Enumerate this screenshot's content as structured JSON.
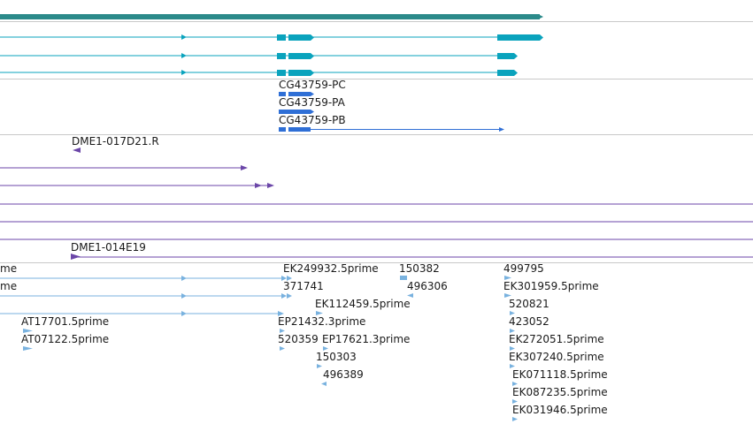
{
  "colors": {
    "gene": "#2b8a8a",
    "transcript": "#0aa3bd",
    "cds": "#2f6fd6",
    "bac": "#6b46a8",
    "est": "#79b2df",
    "separator": "#c8c8c8"
  },
  "tracks": {
    "cds_labels": [
      "CG43759-PC",
      "CG43759-PA",
      "CG43759-PB"
    ],
    "bac_labels": [
      "DME1-017D21.R",
      "DME1-014E19"
    ],
    "est_labels": [
      "me",
      "me",
      "EK249932.5prime",
      "150382",
      "499795",
      "371741",
      "496306",
      "EK301959.5prime",
      "EK112459.5prime",
      "520821",
      "AT17701.5prime",
      "EP21432.3prime",
      "423052",
      "AT07122.5prime",
      "520359",
      "EP17621.3prime",
      "EK272051.5prime",
      "150303",
      "EK307240.5prime",
      "496389",
      "EK071118.5prime",
      "EK087235.5prime",
      "EK031946.5prime"
    ]
  }
}
